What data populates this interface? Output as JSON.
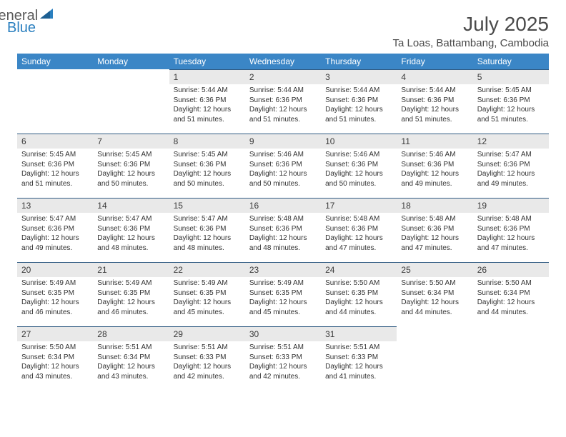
{
  "logo": {
    "word1": "General",
    "word2": "Blue",
    "color_gray": "#5a5a5a",
    "color_blue": "#2a7fbf"
  },
  "header": {
    "month_title": "July 2025",
    "location": "Ta Loas, Battambang, Cambodia"
  },
  "colors": {
    "header_bg": "#3b86c6",
    "header_fg": "#ffffff",
    "daynum_bg": "#e9e9e9",
    "daynum_border": "#2f5a82",
    "text": "#333333",
    "title": "#4a4a4a"
  },
  "weekdays": [
    "Sunday",
    "Monday",
    "Tuesday",
    "Wednesday",
    "Thursday",
    "Friday",
    "Saturday"
  ],
  "weeks": [
    [
      {
        "day": "",
        "sunrise": "",
        "sunset": "",
        "daylight1": "",
        "daylight2": ""
      },
      {
        "day": "",
        "sunrise": "",
        "sunset": "",
        "daylight1": "",
        "daylight2": ""
      },
      {
        "day": "1",
        "sunrise": "Sunrise: 5:44 AM",
        "sunset": "Sunset: 6:36 PM",
        "daylight1": "Daylight: 12 hours",
        "daylight2": "and 51 minutes."
      },
      {
        "day": "2",
        "sunrise": "Sunrise: 5:44 AM",
        "sunset": "Sunset: 6:36 PM",
        "daylight1": "Daylight: 12 hours",
        "daylight2": "and 51 minutes."
      },
      {
        "day": "3",
        "sunrise": "Sunrise: 5:44 AM",
        "sunset": "Sunset: 6:36 PM",
        "daylight1": "Daylight: 12 hours",
        "daylight2": "and 51 minutes."
      },
      {
        "day": "4",
        "sunrise": "Sunrise: 5:44 AM",
        "sunset": "Sunset: 6:36 PM",
        "daylight1": "Daylight: 12 hours",
        "daylight2": "and 51 minutes."
      },
      {
        "day": "5",
        "sunrise": "Sunrise: 5:45 AM",
        "sunset": "Sunset: 6:36 PM",
        "daylight1": "Daylight: 12 hours",
        "daylight2": "and 51 minutes."
      }
    ],
    [
      {
        "day": "6",
        "sunrise": "Sunrise: 5:45 AM",
        "sunset": "Sunset: 6:36 PM",
        "daylight1": "Daylight: 12 hours",
        "daylight2": "and 51 minutes."
      },
      {
        "day": "7",
        "sunrise": "Sunrise: 5:45 AM",
        "sunset": "Sunset: 6:36 PM",
        "daylight1": "Daylight: 12 hours",
        "daylight2": "and 50 minutes."
      },
      {
        "day": "8",
        "sunrise": "Sunrise: 5:45 AM",
        "sunset": "Sunset: 6:36 PM",
        "daylight1": "Daylight: 12 hours",
        "daylight2": "and 50 minutes."
      },
      {
        "day": "9",
        "sunrise": "Sunrise: 5:46 AM",
        "sunset": "Sunset: 6:36 PM",
        "daylight1": "Daylight: 12 hours",
        "daylight2": "and 50 minutes."
      },
      {
        "day": "10",
        "sunrise": "Sunrise: 5:46 AM",
        "sunset": "Sunset: 6:36 PM",
        "daylight1": "Daylight: 12 hours",
        "daylight2": "and 50 minutes."
      },
      {
        "day": "11",
        "sunrise": "Sunrise: 5:46 AM",
        "sunset": "Sunset: 6:36 PM",
        "daylight1": "Daylight: 12 hours",
        "daylight2": "and 49 minutes."
      },
      {
        "day": "12",
        "sunrise": "Sunrise: 5:47 AM",
        "sunset": "Sunset: 6:36 PM",
        "daylight1": "Daylight: 12 hours",
        "daylight2": "and 49 minutes."
      }
    ],
    [
      {
        "day": "13",
        "sunrise": "Sunrise: 5:47 AM",
        "sunset": "Sunset: 6:36 PM",
        "daylight1": "Daylight: 12 hours",
        "daylight2": "and 49 minutes."
      },
      {
        "day": "14",
        "sunrise": "Sunrise: 5:47 AM",
        "sunset": "Sunset: 6:36 PM",
        "daylight1": "Daylight: 12 hours",
        "daylight2": "and 48 minutes."
      },
      {
        "day": "15",
        "sunrise": "Sunrise: 5:47 AM",
        "sunset": "Sunset: 6:36 PM",
        "daylight1": "Daylight: 12 hours",
        "daylight2": "and 48 minutes."
      },
      {
        "day": "16",
        "sunrise": "Sunrise: 5:48 AM",
        "sunset": "Sunset: 6:36 PM",
        "daylight1": "Daylight: 12 hours",
        "daylight2": "and 48 minutes."
      },
      {
        "day": "17",
        "sunrise": "Sunrise: 5:48 AM",
        "sunset": "Sunset: 6:36 PM",
        "daylight1": "Daylight: 12 hours",
        "daylight2": "and 47 minutes."
      },
      {
        "day": "18",
        "sunrise": "Sunrise: 5:48 AM",
        "sunset": "Sunset: 6:36 PM",
        "daylight1": "Daylight: 12 hours",
        "daylight2": "and 47 minutes."
      },
      {
        "day": "19",
        "sunrise": "Sunrise: 5:48 AM",
        "sunset": "Sunset: 6:36 PM",
        "daylight1": "Daylight: 12 hours",
        "daylight2": "and 47 minutes."
      }
    ],
    [
      {
        "day": "20",
        "sunrise": "Sunrise: 5:49 AM",
        "sunset": "Sunset: 6:35 PM",
        "daylight1": "Daylight: 12 hours",
        "daylight2": "and 46 minutes."
      },
      {
        "day": "21",
        "sunrise": "Sunrise: 5:49 AM",
        "sunset": "Sunset: 6:35 PM",
        "daylight1": "Daylight: 12 hours",
        "daylight2": "and 46 minutes."
      },
      {
        "day": "22",
        "sunrise": "Sunrise: 5:49 AM",
        "sunset": "Sunset: 6:35 PM",
        "daylight1": "Daylight: 12 hours",
        "daylight2": "and 45 minutes."
      },
      {
        "day": "23",
        "sunrise": "Sunrise: 5:49 AM",
        "sunset": "Sunset: 6:35 PM",
        "daylight1": "Daylight: 12 hours",
        "daylight2": "and 45 minutes."
      },
      {
        "day": "24",
        "sunrise": "Sunrise: 5:50 AM",
        "sunset": "Sunset: 6:35 PM",
        "daylight1": "Daylight: 12 hours",
        "daylight2": "and 44 minutes."
      },
      {
        "day": "25",
        "sunrise": "Sunrise: 5:50 AM",
        "sunset": "Sunset: 6:34 PM",
        "daylight1": "Daylight: 12 hours",
        "daylight2": "and 44 minutes."
      },
      {
        "day": "26",
        "sunrise": "Sunrise: 5:50 AM",
        "sunset": "Sunset: 6:34 PM",
        "daylight1": "Daylight: 12 hours",
        "daylight2": "and 44 minutes."
      }
    ],
    [
      {
        "day": "27",
        "sunrise": "Sunrise: 5:50 AM",
        "sunset": "Sunset: 6:34 PM",
        "daylight1": "Daylight: 12 hours",
        "daylight2": "and 43 minutes."
      },
      {
        "day": "28",
        "sunrise": "Sunrise: 5:51 AM",
        "sunset": "Sunset: 6:34 PM",
        "daylight1": "Daylight: 12 hours",
        "daylight2": "and 43 minutes."
      },
      {
        "day": "29",
        "sunrise": "Sunrise: 5:51 AM",
        "sunset": "Sunset: 6:33 PM",
        "daylight1": "Daylight: 12 hours",
        "daylight2": "and 42 minutes."
      },
      {
        "day": "30",
        "sunrise": "Sunrise: 5:51 AM",
        "sunset": "Sunset: 6:33 PM",
        "daylight1": "Daylight: 12 hours",
        "daylight2": "and 42 minutes."
      },
      {
        "day": "31",
        "sunrise": "Sunrise: 5:51 AM",
        "sunset": "Sunset: 6:33 PM",
        "daylight1": "Daylight: 12 hours",
        "daylight2": "and 41 minutes."
      },
      {
        "day": "",
        "sunrise": "",
        "sunset": "",
        "daylight1": "",
        "daylight2": ""
      },
      {
        "day": "",
        "sunrise": "",
        "sunset": "",
        "daylight1": "",
        "daylight2": ""
      }
    ]
  ]
}
